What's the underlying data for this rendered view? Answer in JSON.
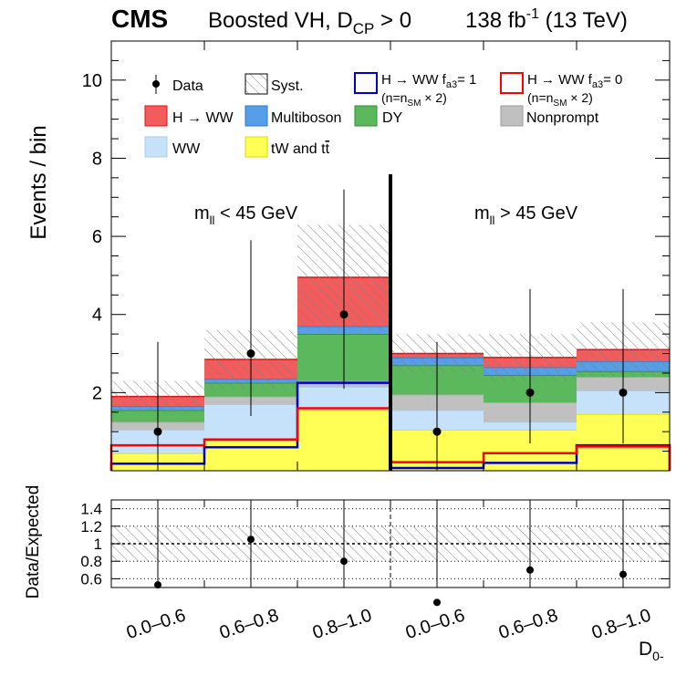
{
  "chart_data": {
    "type": "bar",
    "stacked": true,
    "header": {
      "experiment": "CMS",
      "analysis_prefix": "Boosted VH, D",
      "analysis_sub": "CP",
      "analysis_suffix": " > 0",
      "lumi_prefix": "138 fb",
      "lumi_sup": "-1",
      "lumi_suffix": " (13 TeV)"
    },
    "ylabel": "Events / bin",
    "ratio_ylabel": "Data/Expected",
    "xlabel_main": "D",
    "xlabel_sub": "0-",
    "ylim": [
      0,
      11
    ],
    "ratio_ylim": [
      0.5,
      1.5
    ],
    "yticks": [
      2,
      4,
      6,
      8,
      10
    ],
    "ratio_yticks": [
      0.6,
      0.8,
      1,
      1.2,
      1.4
    ],
    "ratio_ytick_labels": [
      "0.6",
      "0.8",
      "1",
      "1.2",
      "1.4"
    ],
    "categories": [
      "0.0–0.6",
      "0.6–0.8",
      "0.8–1.0",
      "0.0–0.6",
      "0.6–0.8",
      "0.8–1.0"
    ],
    "regions": [
      {
        "label_main": "m",
        "label_sub": "ll",
        "label_rest": " < 45 GeV"
      },
      {
        "label_main": "m",
        "label_sub": "ll",
        "label_rest": " > 45 GeV"
      }
    ],
    "series": [
      {
        "name": "tW and tt̄",
        "color": "#ffff55",
        "values": [
          0.45,
          0.8,
          1.55,
          1.05,
          1.05,
          1.45
        ]
      },
      {
        "name": "WW",
        "color": "#c6e2fa",
        "values": [
          0.6,
          0.9,
          0.6,
          0.5,
          0.2,
          0.6
        ]
      },
      {
        "name": "Nonprompt",
        "color": "#c0c0c0",
        "values": [
          0.2,
          0.2,
          0.15,
          0.4,
          0.5,
          0.35
        ]
      },
      {
        "name": "DY",
        "color": "#5cb85c",
        "values": [
          0.3,
          0.35,
          1.2,
          0.75,
          0.7,
          0.15
        ]
      },
      {
        "name": "Multiboson",
        "color": "#569ee8",
        "values": [
          0.1,
          0.1,
          0.2,
          0.2,
          0.2,
          0.25
        ]
      },
      {
        "name": "H → WW",
        "color": "#f25c5c",
        "values": [
          0.25,
          0.5,
          1.25,
          0.1,
          0.25,
          0.3
        ]
      }
    ],
    "lines": [
      {
        "name": "H → WW f_a3 = 1 (n=n_SM × 2)",
        "color": "#0000cc",
        "values": [
          0.18,
          0.6,
          2.25,
          0.07,
          0.2,
          0.65
        ]
      },
      {
        "name": "H → WW f_a3 = 0 (n=n_SM × 2)",
        "color": "#ff0000",
        "values": [
          0.65,
          0.8,
          1.6,
          0.22,
          0.45,
          0.62
        ]
      }
    ],
    "syst_upper": [
      2.3,
      3.6,
      6.3,
      3.5,
      3.5,
      3.8
    ],
    "data": {
      "name": "Data",
      "values": [
        1,
        3,
        4,
        1,
        2,
        2
      ],
      "err_low": [
        1,
        1.6,
        1.9,
        1,
        1.3,
        1.3
      ],
      "err_high": [
        2.3,
        2.9,
        3.2,
        2.3,
        2.65,
        2.65
      ]
    },
    "ratio": {
      "values": [
        0.53,
        1.05,
        0.8,
        0.33,
        0.7,
        0.65
      ],
      "err_high": [
        0.97,
        0.45,
        0.7,
        1.17,
        0.8,
        0.85
      ],
      "syst_band": [
        0.8,
        1.2
      ]
    },
    "legend": {
      "data": "Data",
      "syst": "Syst.",
      "hww": "H → WW",
      "multiboson": "Multiboson",
      "dy": "DY",
      "nonprompt": "Nonprompt",
      "ww": "WW",
      "tw": "tW and t",
      "tw_bar": "t",
      "fa3_1_main": "H → WW f",
      "fa3_1_sub": "a3",
      "fa3_1_rest": "= 1",
      "fa3_0_main": "H → WW f",
      "fa3_0_sub": "a3",
      "fa3_0_rest": "= 0",
      "norm_main": "(n=n",
      "norm_sub": "SM",
      "norm_rest": " × 2)"
    }
  }
}
